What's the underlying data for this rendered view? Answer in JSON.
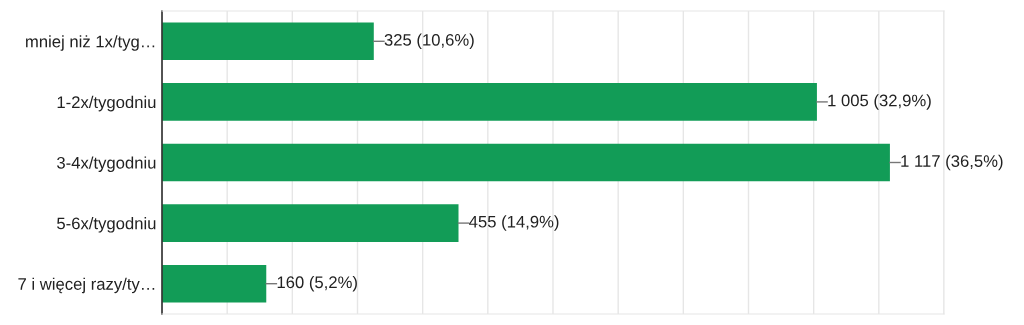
{
  "chart_data": {
    "type": "bar",
    "orientation": "horizontal",
    "categories": [
      "mniej niż 1x/tyg…",
      "1-2x/tygodniu",
      "3-4x/tygodniu",
      "5-6x/tygodniu",
      "7 i więcej razy/ty…"
    ],
    "values": [
      325,
      1005,
      1117,
      455,
      160
    ],
    "value_labels": [
      "325 (10,6%)",
      "1 005 (32,9%)",
      "1 117 (36,5%)",
      "455 (14,9%)",
      "160 (5,2%)"
    ],
    "color": "#129c57",
    "xlim": [
      0,
      1200
    ],
    "xticks": [
      {
        "value": 0,
        "label": null
      },
      {
        "value": 100,
        "label": null
      },
      {
        "value": 200,
        "label": null
      },
      {
        "value": 300,
        "label": null
      },
      {
        "value": 400,
        "label": null
      },
      {
        "value": 500,
        "label": null
      },
      {
        "value": 600,
        "label": null
      },
      {
        "value": 700,
        "label": null
      },
      {
        "value": 800,
        "label": null
      },
      {
        "value": 900,
        "label": null
      },
      {
        "value": 1000,
        "label": null
      },
      {
        "value": 1100,
        "label": null
      },
      {
        "value": 1200,
        "label": null
      }
    ],
    "tick_labels": "y",
    "grid": "x"
  }
}
